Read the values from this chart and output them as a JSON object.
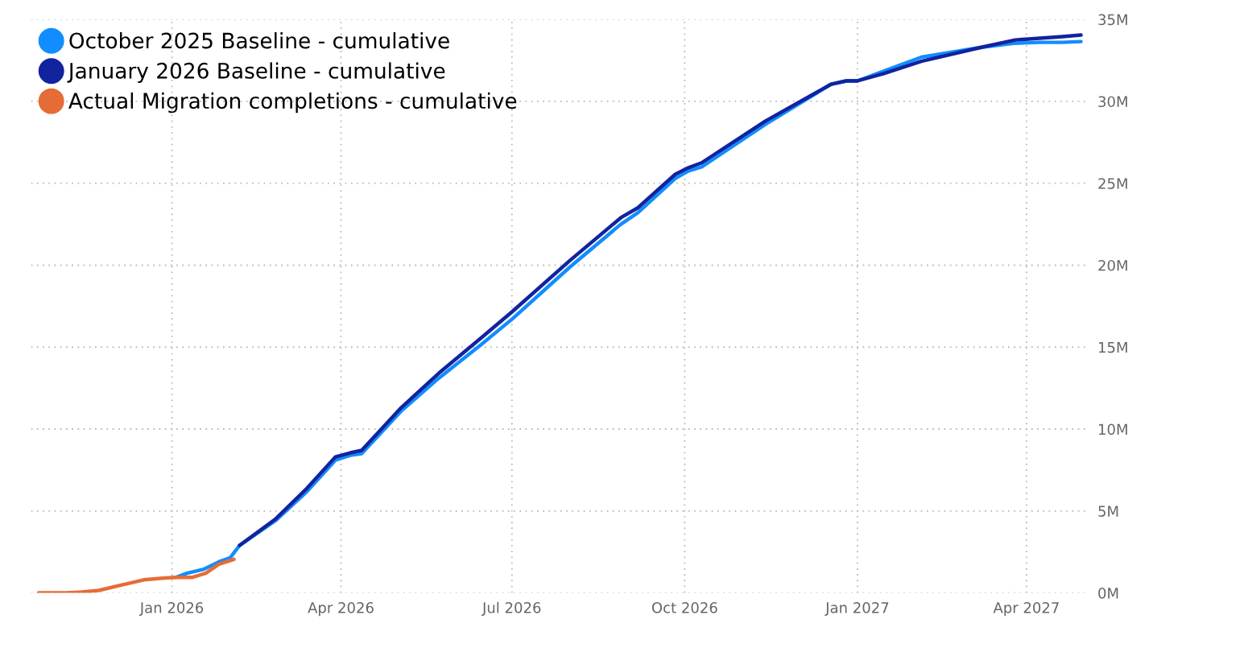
{
  "chart_data": {
    "type": "line",
    "series": [
      {
        "name": "October 2025 Baseline - cumulative",
        "color": "#118dff",
        "x": [
          "2026-01-03",
          "2026-01-09",
          "2026-01-18",
          "2026-01-26",
          "2026-02-01",
          "2026-02-06",
          "2026-02-25",
          "2026-03-14",
          "2026-03-29",
          "2026-04-06",
          "2026-04-12",
          "2026-05-03",
          "2026-05-23",
          "2026-06-14",
          "2026-07-01",
          "2026-08-01",
          "2026-08-28",
          "2026-09-06",
          "2026-09-26",
          "2026-10-03",
          "2026-10-10",
          "2026-11-13",
          "2026-12-18",
          "2026-12-26",
          "2027-01-01",
          "2027-01-15",
          "2027-02-04",
          "2027-03-08",
          "2027-03-26",
          "2027-04-08",
          "2027-04-20",
          "2027-04-30"
        ],
        "values": [
          0.95,
          1.2,
          1.45,
          1.9,
          2.15,
          2.9,
          4.4,
          6.2,
          8.1,
          8.4,
          8.5,
          11.1,
          13.1,
          15.1,
          16.7,
          19.9,
          22.5,
          23.2,
          25.3,
          25.75,
          26.0,
          28.6,
          31.05,
          31.25,
          31.25,
          31.85,
          32.7,
          33.3,
          33.55,
          33.6,
          33.6,
          33.65
        ]
      },
      {
        "name": "January 2026 Baseline - cumulative",
        "color": "#12239e",
        "x": [
          "2026-02-06",
          "2026-02-25",
          "2026-03-14",
          "2026-03-29",
          "2026-04-06",
          "2026-04-12",
          "2026-05-03",
          "2026-05-23",
          "2026-06-14",
          "2026-07-01",
          "2026-08-01",
          "2026-08-28",
          "2026-09-06",
          "2026-09-26",
          "2026-10-03",
          "2026-10-10",
          "2026-11-13",
          "2026-12-18",
          "2026-12-26",
          "2027-01-01",
          "2027-01-15",
          "2027-02-04",
          "2027-03-08",
          "2027-03-26",
          "2027-04-08",
          "2027-04-20",
          "2027-04-30"
        ],
        "values": [
          2.9,
          4.5,
          6.4,
          8.3,
          8.55,
          8.7,
          11.3,
          13.4,
          15.5,
          17.15,
          20.3,
          22.9,
          23.5,
          25.55,
          25.95,
          26.25,
          28.8,
          31.05,
          31.25,
          31.25,
          31.7,
          32.45,
          33.3,
          33.75,
          33.85,
          33.95,
          34.05
        ]
      },
      {
        "name": "Actual Migration completions - cumulative",
        "color": "#e66c37",
        "x": [
          "2025-10-22",
          "2025-11-06",
          "2025-11-14",
          "2025-11-23",
          "2025-12-04",
          "2025-12-17",
          "2025-12-27",
          "2026-01-03",
          "2026-01-12",
          "2026-01-19",
          "2026-01-26",
          "2026-02-03"
        ],
        "values": [
          0,
          0,
          0.05,
          0.15,
          0.45,
          0.8,
          0.9,
          0.95,
          0.95,
          1.2,
          1.75,
          2.05
        ]
      }
    ],
    "xlim": [
      "2025-10-18",
      "2027-05-04"
    ],
    "xticks": [
      {
        "value": "2026-01-01",
        "label": "Jan 2026"
      },
      {
        "value": "2026-04-01",
        "label": "Apr 2026"
      },
      {
        "value": "2026-07-01",
        "label": "Jul 2026"
      },
      {
        "value": "2026-10-01",
        "label": "Oct 2026"
      },
      {
        "value": "2027-01-01",
        "label": "Jan 2027"
      },
      {
        "value": "2027-04-01",
        "label": "Apr 2027"
      }
    ],
    "ylim": [
      0,
      35
    ],
    "yticks": [
      {
        "value": 0,
        "label": "0M"
      },
      {
        "value": 5,
        "label": "5M"
      },
      {
        "value": 10,
        "label": "10M"
      },
      {
        "value": 15,
        "label": "15M"
      },
      {
        "value": 20,
        "label": "20M"
      },
      {
        "value": 25,
        "label": "25M"
      },
      {
        "value": 30,
        "label": "30M"
      },
      {
        "value": 35,
        "label": "35M"
      }
    ],
    "grid": true,
    "legend": "top left",
    "marker": "none",
    "line_style": "solid"
  }
}
